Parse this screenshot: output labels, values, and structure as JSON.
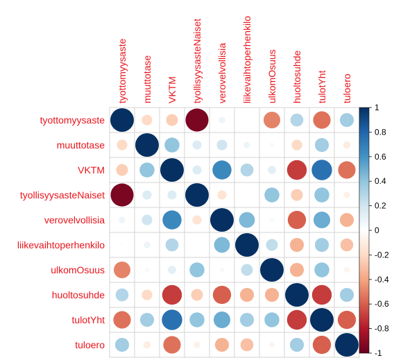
{
  "chart_data": {
    "type": "heatmap",
    "title": "",
    "variables": [
      "tyottomyysaste",
      "muuttotase",
      "VKTM",
      "tyollisyysasteNaiset",
      "verovelvollisia",
      "liikevaihtoperhenkilo",
      "ulkomOsuus",
      "huoltosuhde",
      "tulotYht",
      "tuloero"
    ],
    "matrix": [
      [
        1.0,
        -0.2,
        -0.25,
        -0.95,
        0.08,
        0.02,
        -0.5,
        0.3,
        -0.55,
        0.35
      ],
      [
        -0.2,
        1.0,
        0.4,
        0.15,
        0.2,
        0.08,
        0.04,
        -0.2,
        0.35,
        -0.1
      ],
      [
        -0.25,
        0.4,
        1.0,
        0.15,
        0.65,
        0.3,
        0.12,
        -0.7,
        0.75,
        -0.55
      ],
      [
        -0.95,
        0.15,
        0.15,
        1.0,
        -0.15,
        0.0,
        0.4,
        -0.25,
        0.4,
        -0.08
      ],
      [
        0.08,
        0.2,
        0.65,
        -0.15,
        1.0,
        0.45,
        0.04,
        -0.6,
        0.5,
        -0.35
      ],
      [
        0.02,
        0.08,
        0.3,
        0.0,
        0.45,
        1.0,
        0.25,
        -0.35,
        0.35,
        -0.3
      ],
      [
        -0.5,
        0.04,
        0.12,
        0.4,
        0.04,
        0.25,
        1.0,
        -0.35,
        0.4,
        -0.06
      ],
      [
        0.3,
        -0.2,
        -0.7,
        -0.25,
        -0.6,
        -0.35,
        -0.35,
        1.0,
        -0.7,
        0.35
      ],
      [
        -0.55,
        0.35,
        0.75,
        0.4,
        0.5,
        0.35,
        0.4,
        -0.7,
        1.0,
        -0.6
      ],
      [
        0.35,
        -0.1,
        -0.55,
        -0.08,
        -0.35,
        -0.3,
        -0.06,
        0.35,
        -0.6,
        1.0
      ]
    ],
    "colorbar": {
      "ticks": [
        "1",
        "0.8",
        "0.6",
        "0.4",
        "0.2",
        "0",
        "-0.2",
        "-0.4",
        "-0.6",
        "-0.8",
        "-1"
      ],
      "range": [
        -1,
        1
      ]
    },
    "colors": {
      "negative_end": "#67001f",
      "neutral": "#ffffff",
      "positive_end": "#053061",
      "label": "#e8141c",
      "grid": "#d3d3d3"
    },
    "grid": true,
    "legend": "right"
  }
}
